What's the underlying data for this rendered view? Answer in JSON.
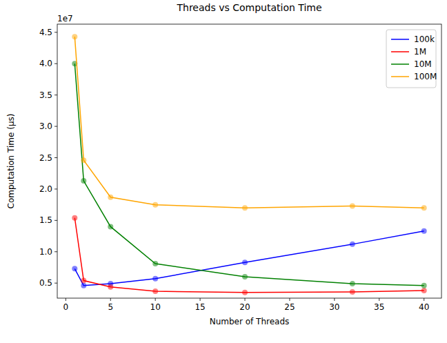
{
  "chart_data": {
    "type": "line",
    "title": "Threads vs Computation Time",
    "x_label": "Number of Threads",
    "y_label": "Computation Time (µs)",
    "annotations": [
      "1e7"
    ],
    "x": [
      1,
      2,
      5,
      10,
      20,
      32,
      40
    ],
    "series": [
      {
        "name": "100k",
        "color": "blue",
        "values": [
          0.73,
          0.46,
          0.49,
          0.57,
          0.83,
          1.12,
          1.33
        ]
      },
      {
        "name": "1M",
        "color": "red",
        "values": [
          1.54,
          0.54,
          0.44,
          0.37,
          0.35,
          0.36,
          0.38
        ]
      },
      {
        "name": "10M",
        "color": "green",
        "values": [
          4.0,
          2.13,
          1.4,
          0.81,
          0.6,
          0.49,
          0.46
        ]
      },
      {
        "name": "100M",
        "color": "orange",
        "values": [
          4.43,
          2.46,
          1.87,
          1.75,
          1.7,
          1.73,
          1.7
        ]
      }
    ],
    "xlim": [
      -0.95,
      41.95
    ],
    "ylim": [
      0.26,
      4.63
    ],
    "xticks": [
      0,
      5,
      10,
      15,
      20,
      25,
      30,
      35,
      40
    ],
    "yticks": [
      0.5,
      {
        "value": 1,
        "label": "1.0"
      },
      1.5,
      {
        "value": 2,
        "label": "2.0"
      },
      2.5,
      {
        "value": 3,
        "label": "3.0"
      },
      3.5,
      {
        "value": 4,
        "label": "4.0"
      },
      4.5
    ],
    "marker": "circle",
    "line_style": "solid",
    "legend": "upper right",
    "grid": false
  }
}
